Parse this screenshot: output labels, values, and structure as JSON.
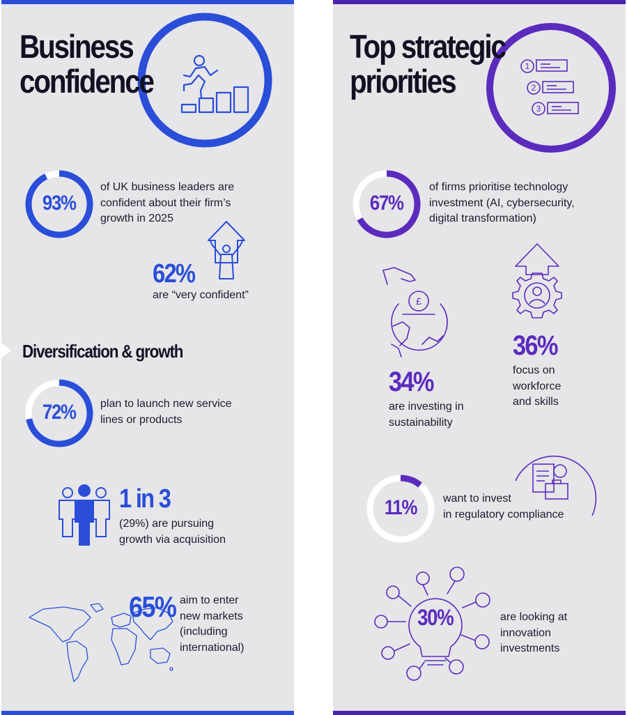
{
  "left": {
    "title": [
      "Business",
      "confidence"
    ],
    "stat1": {
      "value": "93%",
      "text": [
        "of UK business leaders are",
        "confident about their firm’s",
        "growth in 2025"
      ],
      "fraction": 0.93
    },
    "stat2": {
      "value": "62%",
      "text": "are “very confident”"
    },
    "section": "Diversification & growth",
    "stat3": {
      "value": "72%",
      "text": [
        "plan to launch new service",
        "lines or products"
      ],
      "fraction": 0.72
    },
    "stat4": {
      "value": "1 in 3",
      "text": [
        "(29%) are pursuing",
        "growth via acquisition"
      ]
    },
    "stat5": {
      "value": "65%",
      "text": [
        "aim to enter",
        "new markets",
        "(including",
        "international)"
      ]
    }
  },
  "right": {
    "title": [
      "Top strategic",
      "priorities"
    ],
    "list_numbers": [
      "1",
      "2",
      "3"
    ],
    "stat1": {
      "value": "67%",
      "text": [
        "of firms prioritise technology",
        "investment (AI, cybersecurity,",
        "digital transformation)"
      ],
      "fraction": 0.67
    },
    "stat2": {
      "value": "34%",
      "text": [
        "are investing in",
        "sustainability"
      ]
    },
    "stat3": {
      "value": "36%",
      "text": [
        "focus on",
        "workforce",
        "and skills"
      ]
    },
    "stat4": {
      "value": "11%",
      "text": [
        "want to invest",
        "in regulatory compliance"
      ],
      "fraction": 0.11
    },
    "stat5": {
      "value": "30%",
      "text": [
        "are looking at",
        "innovation",
        "investments"
      ]
    },
    "pound_symbol": "£"
  },
  "colors": {
    "blue": "#2a4ed8",
    "purple": "#5b2bbd",
    "ring_bg": "#ffffff",
    "panel": "#e6e6e9"
  }
}
